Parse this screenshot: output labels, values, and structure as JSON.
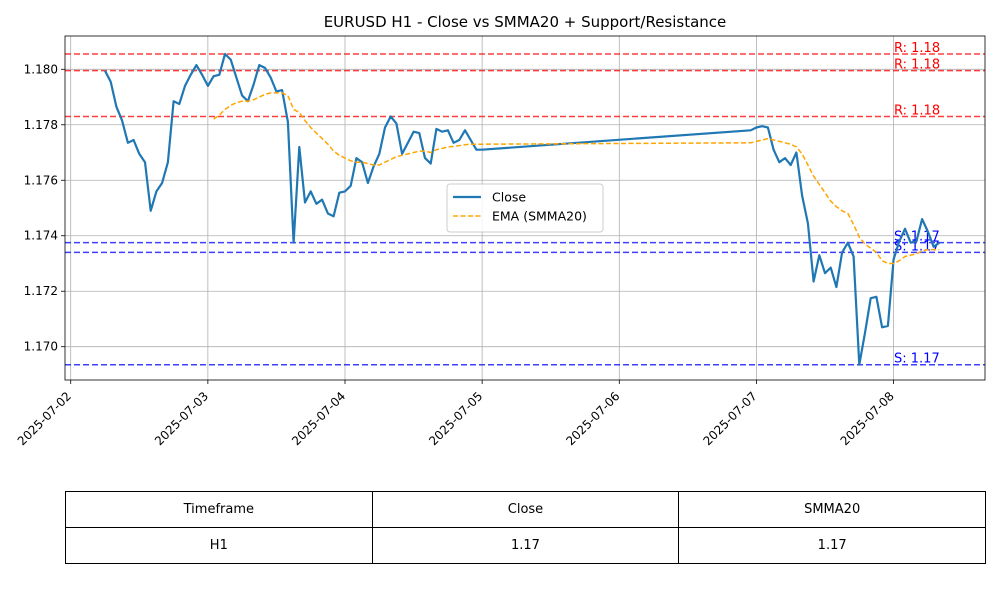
{
  "chart_data": {
    "type": "line",
    "title": "EURUSD H1 - Close vs SMMA20 + Support/Resistance",
    "xlabel": "",
    "ylabel": "",
    "x_ticks": [
      "2025-07-02",
      "2025-07-03",
      "2025-07-04",
      "2025-07-05",
      "2025-07-06",
      "2025-07-07",
      "2025-07-08"
    ],
    "xlim": [
      "2025-07-01T23:00",
      "2025-07-08T16:00"
    ],
    "y_ticks": [
      "1.170",
      "1.172",
      "1.174",
      "1.176",
      "1.178",
      "1.180"
    ],
    "ylim": [
      1.1688,
      1.1812
    ],
    "grid": true,
    "legend_position": "center",
    "series": [
      {
        "name": "Close",
        "style": "solid",
        "color": "#1f77b4",
        "points": [
          [
            "2025-07-02T06:00",
            1.17995
          ],
          [
            "2025-07-02T07:00",
            1.17955
          ],
          [
            "2025-07-02T08:00",
            1.17865
          ],
          [
            "2025-07-02T09:00",
            1.17815
          ],
          [
            "2025-07-02T10:00",
            1.17735
          ],
          [
            "2025-07-02T11:00",
            1.17745
          ],
          [
            "2025-07-02T12:00",
            1.17695
          ],
          [
            "2025-07-02T13:00",
            1.17665
          ],
          [
            "2025-07-02T14:00",
            1.1749
          ],
          [
            "2025-07-02T15:00",
            1.1756
          ],
          [
            "2025-07-02T16:00",
            1.1759
          ],
          [
            "2025-07-02T17:00",
            1.17665
          ],
          [
            "2025-07-02T18:00",
            1.17885
          ],
          [
            "2025-07-02T19:00",
            1.17875
          ],
          [
            "2025-07-02T20:00",
            1.1794
          ],
          [
            "2025-07-02T21:00",
            1.1798
          ],
          [
            "2025-07-02T22:00",
            1.18015
          ],
          [
            "2025-07-02T23:00",
            1.1798
          ],
          [
            "2025-07-03T00:00",
            1.1794
          ],
          [
            "2025-07-03T01:00",
            1.17975
          ],
          [
            "2025-07-03T02:00",
            1.1798
          ],
          [
            "2025-07-03T03:00",
            1.18055
          ],
          [
            "2025-07-03T04:00",
            1.18035
          ],
          [
            "2025-07-03T05:00",
            1.1797
          ],
          [
            "2025-07-03T06:00",
            1.17905
          ],
          [
            "2025-07-03T07:00",
            1.17885
          ],
          [
            "2025-07-03T08:00",
            1.17945
          ],
          [
            "2025-07-03T09:00",
            1.18015
          ],
          [
            "2025-07-03T10:00",
            1.18005
          ],
          [
            "2025-07-03T11:00",
            1.1797
          ],
          [
            "2025-07-03T12:00",
            1.1792
          ],
          [
            "2025-07-03T13:00",
            1.17925
          ],
          [
            "2025-07-03T14:00",
            1.1781
          ],
          [
            "2025-07-03T15:00",
            1.17375
          ],
          [
            "2025-07-03T16:00",
            1.1772
          ],
          [
            "2025-07-03T17:00",
            1.1752
          ],
          [
            "2025-07-03T18:00",
            1.1756
          ],
          [
            "2025-07-03T19:00",
            1.17515
          ],
          [
            "2025-07-03T20:00",
            1.1753
          ],
          [
            "2025-07-03T21:00",
            1.1748
          ],
          [
            "2025-07-03T22:00",
            1.1747
          ],
          [
            "2025-07-03T23:00",
            1.17555
          ],
          [
            "2025-07-04T00:00",
            1.1756
          ],
          [
            "2025-07-04T01:00",
            1.1758
          ],
          [
            "2025-07-04T02:00",
            1.1768
          ],
          [
            "2025-07-04T03:00",
            1.17665
          ],
          [
            "2025-07-04T04:00",
            1.1759
          ],
          [
            "2025-07-04T05:00",
            1.1765
          ],
          [
            "2025-07-04T06:00",
            1.17695
          ],
          [
            "2025-07-04T07:00",
            1.1779
          ],
          [
            "2025-07-04T08:00",
            1.1783
          ],
          [
            "2025-07-04T09:00",
            1.17805
          ],
          [
            "2025-07-04T10:00",
            1.17695
          ],
          [
            "2025-07-04T11:00",
            1.17735
          ],
          [
            "2025-07-04T12:00",
            1.17775
          ],
          [
            "2025-07-04T13:00",
            1.1777
          ],
          [
            "2025-07-04T14:00",
            1.1768
          ],
          [
            "2025-07-04T15:00",
            1.1766
          ],
          [
            "2025-07-04T16:00",
            1.17785
          ],
          [
            "2025-07-04T17:00",
            1.17775
          ],
          [
            "2025-07-04T18:00",
            1.1778
          ],
          [
            "2025-07-04T19:00",
            1.17735
          ],
          [
            "2025-07-04T20:00",
            1.17745
          ],
          [
            "2025-07-04T21:00",
            1.1778
          ],
          [
            "2025-07-04T22:00",
            1.17745
          ],
          [
            "2025-07-04T23:00",
            1.1771
          ],
          [
            "2025-07-05T00:00",
            1.1771
          ],
          [
            "2025-07-06T23:00",
            1.1778
          ],
          [
            "2025-07-07T00:00",
            1.1779
          ],
          [
            "2025-07-07T01:00",
            1.17795
          ],
          [
            "2025-07-07T02:00",
            1.1779
          ],
          [
            "2025-07-07T03:00",
            1.1771
          ],
          [
            "2025-07-07T04:00",
            1.17665
          ],
          [
            "2025-07-07T05:00",
            1.1768
          ],
          [
            "2025-07-07T06:00",
            1.17655
          ],
          [
            "2025-07-07T07:00",
            1.177
          ],
          [
            "2025-07-07T08:00",
            1.17545
          ],
          [
            "2025-07-07T09:00",
            1.17445
          ],
          [
            "2025-07-07T10:00",
            1.17235
          ],
          [
            "2025-07-07T11:00",
            1.1733
          ],
          [
            "2025-07-07T12:00",
            1.17265
          ],
          [
            "2025-07-07T13:00",
            1.17285
          ],
          [
            "2025-07-07T14:00",
            1.17215
          ],
          [
            "2025-07-07T15:00",
            1.1734
          ],
          [
            "2025-07-07T16:00",
            1.17375
          ],
          [
            "2025-07-07T17:00",
            1.17325
          ],
          [
            "2025-07-07T18:00",
            1.16935
          ],
          [
            "2025-07-07T19:00",
            1.1705
          ],
          [
            "2025-07-07T20:00",
            1.17175
          ],
          [
            "2025-07-07T21:00",
            1.1718
          ],
          [
            "2025-07-07T22:00",
            1.1707
          ],
          [
            "2025-07-07T23:00",
            1.17075
          ],
          [
            "2025-07-08T00:00",
            1.17315
          ],
          [
            "2025-07-08T01:00",
            1.1738
          ],
          [
            "2025-07-08T02:00",
            1.17425
          ],
          [
            "2025-07-08T03:00",
            1.17375
          ],
          [
            "2025-07-08T04:00",
            1.1738
          ],
          [
            "2025-07-08T05:00",
            1.1746
          ],
          [
            "2025-07-08T06:00",
            1.17415
          ],
          [
            "2025-07-08T07:00",
            1.1736
          ],
          [
            "2025-07-08T08:00",
            1.17375
          ]
        ]
      },
      {
        "name": "EMA (SMMA20)",
        "style": "dashed",
        "color": "#ffa500",
        "points": [
          [
            "2025-07-03T01:00",
            1.1782
          ],
          [
            "2025-07-03T02:00",
            1.17835
          ],
          [
            "2025-07-03T03:00",
            1.17855
          ],
          [
            "2025-07-03T04:00",
            1.1787
          ],
          [
            "2025-07-03T05:00",
            1.1788
          ],
          [
            "2025-07-03T06:00",
            1.17885
          ],
          [
            "2025-07-03T07:00",
            1.17885
          ],
          [
            "2025-07-03T08:00",
            1.1789
          ],
          [
            "2025-07-03T09:00",
            1.179
          ],
          [
            "2025-07-03T10:00",
            1.1791
          ],
          [
            "2025-07-03T11:00",
            1.17915
          ],
          [
            "2025-07-03T12:00",
            1.17915
          ],
          [
            "2025-07-03T13:00",
            1.17915
          ],
          [
            "2025-07-03T14:00",
            1.17905
          ],
          [
            "2025-07-03T15:00",
            1.17855
          ],
          [
            "2025-07-03T16:00",
            1.17845
          ],
          [
            "2025-07-03T17:00",
            1.17815
          ],
          [
            "2025-07-03T18:00",
            1.1779
          ],
          [
            "2025-07-03T19:00",
            1.1777
          ],
          [
            "2025-07-03T20:00",
            1.1775
          ],
          [
            "2025-07-03T21:00",
            1.1773
          ],
          [
            "2025-07-03T22:00",
            1.17705
          ],
          [
            "2025-07-03T23:00",
            1.1769
          ],
          [
            "2025-07-04T00:00",
            1.1768
          ],
          [
            "2025-07-04T01:00",
            1.1767
          ],
          [
            "2025-07-04T02:00",
            1.17665
          ],
          [
            "2025-07-04T03:00",
            1.17665
          ],
          [
            "2025-07-04T04:00",
            1.1766
          ],
          [
            "2025-07-04T05:00",
            1.17655
          ],
          [
            "2025-07-04T06:00",
            1.17655
          ],
          [
            "2025-07-04T07:00",
            1.17665
          ],
          [
            "2025-07-04T08:00",
            1.17675
          ],
          [
            "2025-07-04T09:00",
            1.17685
          ],
          [
            "2025-07-04T10:00",
            1.1769
          ],
          [
            "2025-07-04T11:00",
            1.17695
          ],
          [
            "2025-07-04T12:00",
            1.177
          ],
          [
            "2025-07-04T13:00",
            1.17705
          ],
          [
            "2025-07-04T14:00",
            1.17705
          ],
          [
            "2025-07-04T15:00",
            1.177
          ],
          [
            "2025-07-04T16:00",
            1.1771
          ],
          [
            "2025-07-04T17:00",
            1.17715
          ],
          [
            "2025-07-04T18:00",
            1.1772
          ],
          [
            "2025-07-04T19:00",
            1.17722
          ],
          [
            "2025-07-04T20:00",
            1.17725
          ],
          [
            "2025-07-04T21:00",
            1.17728
          ],
          [
            "2025-07-04T22:00",
            1.1773
          ],
          [
            "2025-07-04T23:00",
            1.1773
          ],
          [
            "2025-07-05T00:00",
            1.1773
          ],
          [
            "2025-07-06T23:00",
            1.17735
          ],
          [
            "2025-07-07T00:00",
            1.1774
          ],
          [
            "2025-07-07T01:00",
            1.17745
          ],
          [
            "2025-07-07T02:00",
            1.1775
          ],
          [
            "2025-07-07T03:00",
            1.17745
          ],
          [
            "2025-07-07T04:00",
            1.1774
          ],
          [
            "2025-07-07T05:00",
            1.17735
          ],
          [
            "2025-07-07T06:00",
            1.1773
          ],
          [
            "2025-07-07T07:00",
            1.1772
          ],
          [
            "2025-07-07T08:00",
            1.17695
          ],
          [
            "2025-07-07T09:00",
            1.17655
          ],
          [
            "2025-07-07T10:00",
            1.17615
          ],
          [
            "2025-07-07T11:00",
            1.17585
          ],
          [
            "2025-07-07T12:00",
            1.17555
          ],
          [
            "2025-07-07T13:00",
            1.17525
          ],
          [
            "2025-07-07T14:00",
            1.17505
          ],
          [
            "2025-07-07T15:00",
            1.1749
          ],
          [
            "2025-07-07T16:00",
            1.1748
          ],
          [
            "2025-07-07T17:00",
            1.1744
          ],
          [
            "2025-07-07T18:00",
            1.17395
          ],
          [
            "2025-07-07T19:00",
            1.1737
          ],
          [
            "2025-07-07T20:00",
            1.17355
          ],
          [
            "2025-07-07T21:00",
            1.1734
          ],
          [
            "2025-07-07T22:00",
            1.1731
          ],
          [
            "2025-07-07T23:00",
            1.173
          ],
          [
            "2025-07-08T00:00",
            1.173
          ],
          [
            "2025-07-08T01:00",
            1.1731
          ],
          [
            "2025-07-08T02:00",
            1.17325
          ],
          [
            "2025-07-08T03:00",
            1.1733
          ],
          [
            "2025-07-08T04:00",
            1.17335
          ],
          [
            "2025-07-08T05:00",
            1.17345
          ],
          [
            "2025-07-08T06:00",
            1.1735
          ],
          [
            "2025-07-08T07:00",
            1.1735
          ],
          [
            "2025-07-08T08:00",
            1.1735
          ]
        ]
      }
    ],
    "resistance_levels": [
      {
        "value": 1.18055,
        "label": "R: 1.18"
      },
      {
        "value": 1.17995,
        "label": "R: 1.18"
      },
      {
        "value": 1.1783,
        "label": "R: 1.18"
      }
    ],
    "support_levels": [
      {
        "value": 1.17375,
        "label": "S: 1.17"
      },
      {
        "value": 1.1734,
        "label": "S: 1.17"
      },
      {
        "value": 1.16935,
        "label": "S: 1.17"
      }
    ],
    "colors": {
      "close": "#1f77b4",
      "smma": "#ffa500",
      "resistance": "#ff0000",
      "support": "#0000ff",
      "grid": "#b0b0b0"
    }
  },
  "table": {
    "headers": [
      "Timeframe",
      "Close",
      "SMMA20"
    ],
    "rows": [
      [
        "H1",
        "1.17",
        "1.17"
      ]
    ]
  }
}
